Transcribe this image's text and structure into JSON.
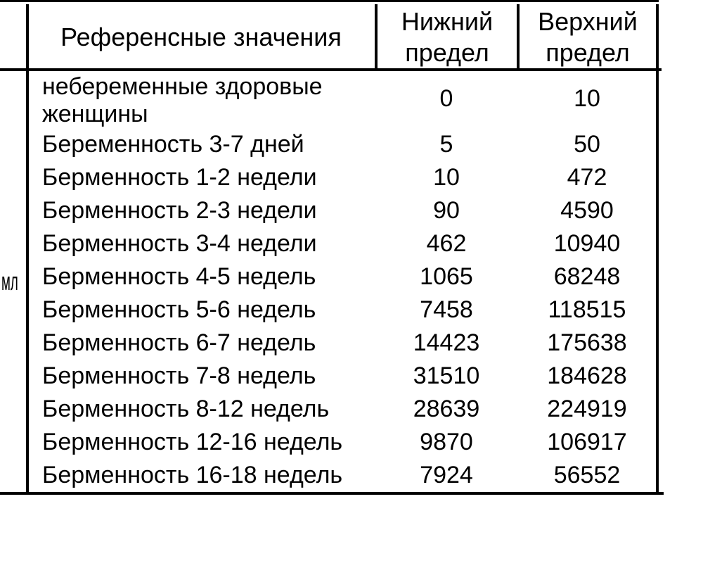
{
  "table": {
    "unit_label": "мл",
    "columns": {
      "reference": "Референсные значения",
      "lower": "Нижний предел",
      "upper": "Верхний предел"
    },
    "rows": [
      {
        "label": "небеременные здоровые женщины",
        "lower": "0",
        "upper": "10",
        "tall": true
      },
      {
        "label": "Беременность 3-7 дней",
        "lower": "5",
        "upper": "50"
      },
      {
        "label": "Берменность 1-2 недели",
        "lower": "10",
        "upper": "472"
      },
      {
        "label": "Берменность 2-3 недели",
        "lower": "90",
        "upper": "4590"
      },
      {
        "label": "Берменность 3-4 недели",
        "lower": "462",
        "upper": "10940"
      },
      {
        "label": "Берменность 4-5 недель",
        "lower": "1065",
        "upper": "68248"
      },
      {
        "label": "Берменность 5-6 недель",
        "lower": "7458",
        "upper": "118515"
      },
      {
        "label": "Берменность 6-7 недель",
        "lower": "14423",
        "upper": "175638"
      },
      {
        "label": "Берменность 7-8 недель",
        "lower": "31510",
        "upper": "184628"
      },
      {
        "label": "Берменность 8-12 недель",
        "lower": "28639",
        "upper": "224919"
      },
      {
        "label": "Берменность 12-16 недель",
        "lower": "9870",
        "upper": "106917"
      },
      {
        "label": "Берменность 16-18 недель",
        "lower": "7924",
        "upper": "56552"
      }
    ],
    "colors": {
      "background": "#ffffff",
      "text": "#000000",
      "border": "#000000"
    }
  }
}
